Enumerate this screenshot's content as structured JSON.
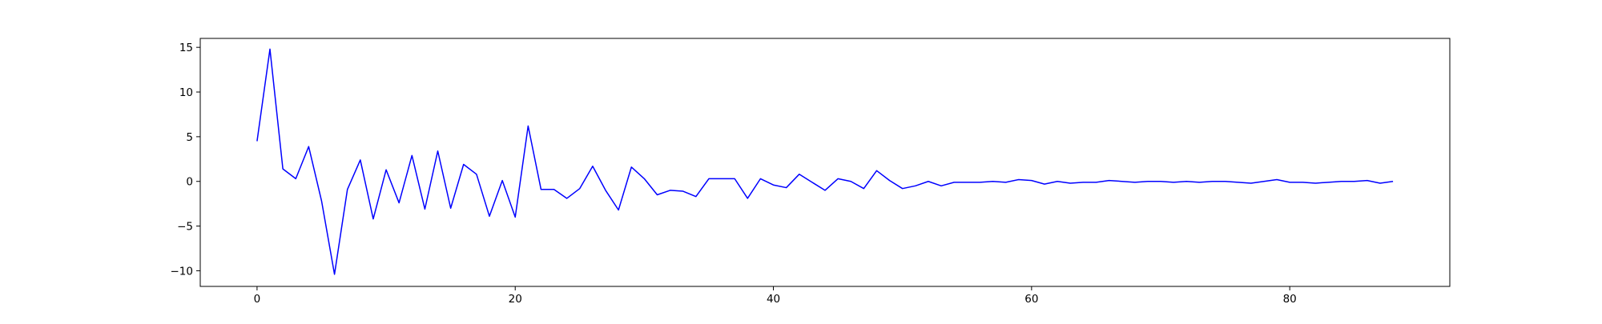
{
  "chart_data": {
    "type": "line",
    "title": "",
    "xlabel": "",
    "ylabel": "",
    "xlim": [
      -4.4,
      92.4
    ],
    "ylim": [
      -11.75,
      16.0
    ],
    "x_ticks": [
      0,
      20,
      40,
      60,
      80
    ],
    "y_ticks": [
      -10,
      -5,
      0,
      5,
      10,
      15
    ],
    "grid": false,
    "legend": null,
    "series": [
      {
        "color": "#0000ff",
        "x": [
          0,
          1,
          2,
          3,
          4,
          5,
          6,
          7,
          8,
          9,
          10,
          11,
          12,
          13,
          14,
          15,
          16,
          17,
          18,
          19,
          20,
          21,
          22,
          23,
          24,
          25,
          26,
          27,
          28,
          29,
          30,
          31,
          32,
          33,
          34,
          35,
          36,
          37,
          38,
          39,
          40,
          41,
          42,
          43,
          44,
          45,
          46,
          47,
          48,
          49,
          50,
          51,
          52,
          53,
          54,
          55,
          56,
          57,
          58,
          59,
          60,
          61,
          62,
          63,
          64,
          65,
          66,
          67,
          68,
          69,
          70,
          71,
          72,
          73,
          74,
          75,
          76,
          77,
          78,
          79,
          80,
          81,
          82,
          83,
          84,
          85,
          86,
          87,
          88
        ],
        "values": [
          4.5,
          14.8,
          1.4,
          0.3,
          3.9,
          -2.2,
          -10.4,
          -0.9,
          2.4,
          -4.2,
          1.3,
          -2.4,
          2.9,
          -3.1,
          3.4,
          -3.0,
          1.9,
          0.8,
          -3.9,
          0.1,
          -4.0,
          6.2,
          -0.9,
          -0.9,
          -1.9,
          -0.8,
          1.7,
          -1.0,
          -3.2,
          1.6,
          0.3,
          -1.5,
          -1.0,
          -1.1,
          -1.7,
          0.3,
          0.3,
          0.3,
          -1.9,
          0.3,
          -0.4,
          -0.7,
          0.8,
          -0.1,
          -1.0,
          0.3,
          0.0,
          -0.8,
          1.2,
          0.1,
          -0.8,
          -0.5,
          0.0,
          -0.5,
          -0.1,
          -0.1,
          -0.1,
          0.0,
          -0.1,
          0.2,
          0.1,
          -0.3,
          0.0,
          -0.2,
          -0.1,
          -0.1,
          0.1,
          0.0,
          -0.1,
          0.0,
          0.0,
          -0.1,
          0.0,
          -0.1,
          0.0,
          0.0,
          -0.1,
          -0.2,
          0.0,
          0.2,
          -0.1,
          -0.1,
          -0.2,
          -0.1,
          0.0,
          0.0,
          0.1,
          -0.2,
          0.0
        ]
      }
    ]
  }
}
